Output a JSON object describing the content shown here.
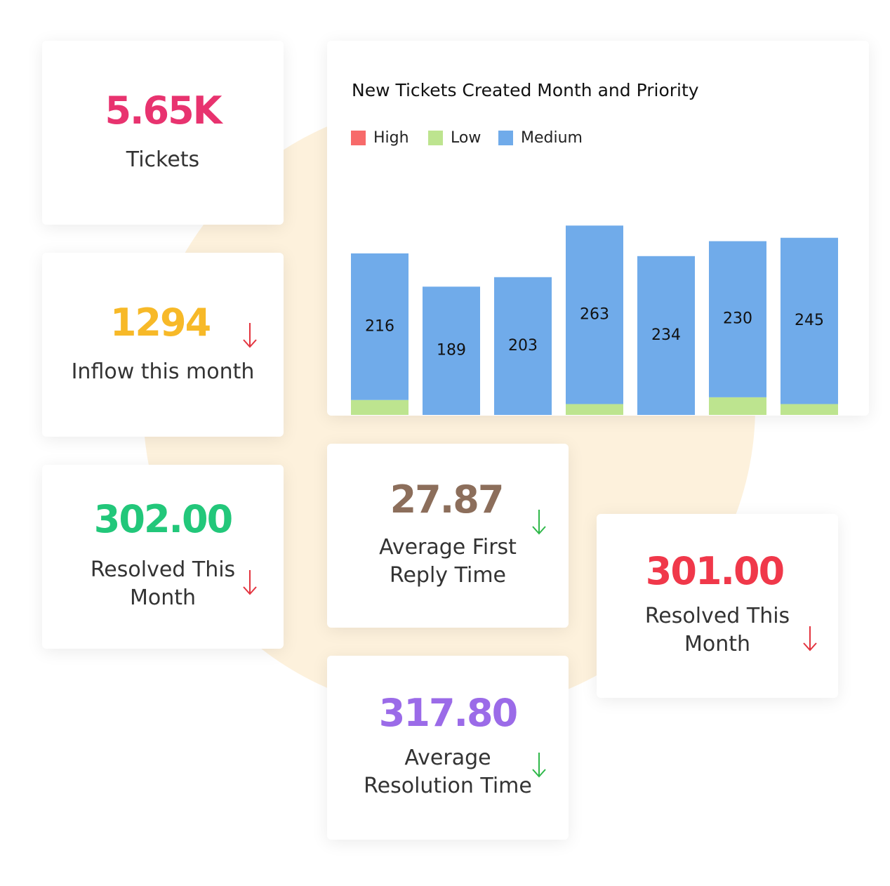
{
  "cards": [
    {
      "value": "5.65K",
      "label": [
        "Tickets"
      ],
      "color": "#e8336f"
    },
    {
      "value": "1294",
      "label": [
        "Inflow this month"
      ],
      "color": "#f7b928",
      "trend_color": "#e3343f"
    },
    {
      "value": "302.00",
      "label": [
        "Resolved This",
        "Month"
      ],
      "color": "#22c77a",
      "trend_color": "#e3343f"
    },
    {
      "value": "27.87",
      "label": [
        "Average First",
        "Reply Time"
      ],
      "color": "#8c6e5b",
      "trend_color": "#2fb84a"
    },
    {
      "value": "301.00",
      "label": [
        "Resolved This",
        "Month"
      ],
      "color": "#f0384a",
      "trend_color": "#e3343f"
    },
    {
      "value": "317.80",
      "label": [
        "Average",
        "Resolution Time"
      ],
      "color": "#9b6be8",
      "trend_color": "#2fb84a"
    }
  ],
  "chart_data": {
    "type": "stacked_bar",
    "title": "New Tickets Created Month and Priority",
    "ylim": [
      0,
      300
    ],
    "series": [
      {
        "name": "High",
        "color": "#f76a6a",
        "values": [
          0,
          0,
          0,
          0,
          0,
          0,
          0
        ]
      },
      {
        "name": "Low",
        "color": "#bde48f",
        "values": [
          22,
          0,
          0,
          16,
          0,
          26,
          16
        ]
      },
      {
        "name": "Medium",
        "color": "#70abea",
        "values": [
          216,
          189,
          203,
          263,
          234,
          230,
          245
        ]
      }
    ],
    "label_series": 2
  }
}
